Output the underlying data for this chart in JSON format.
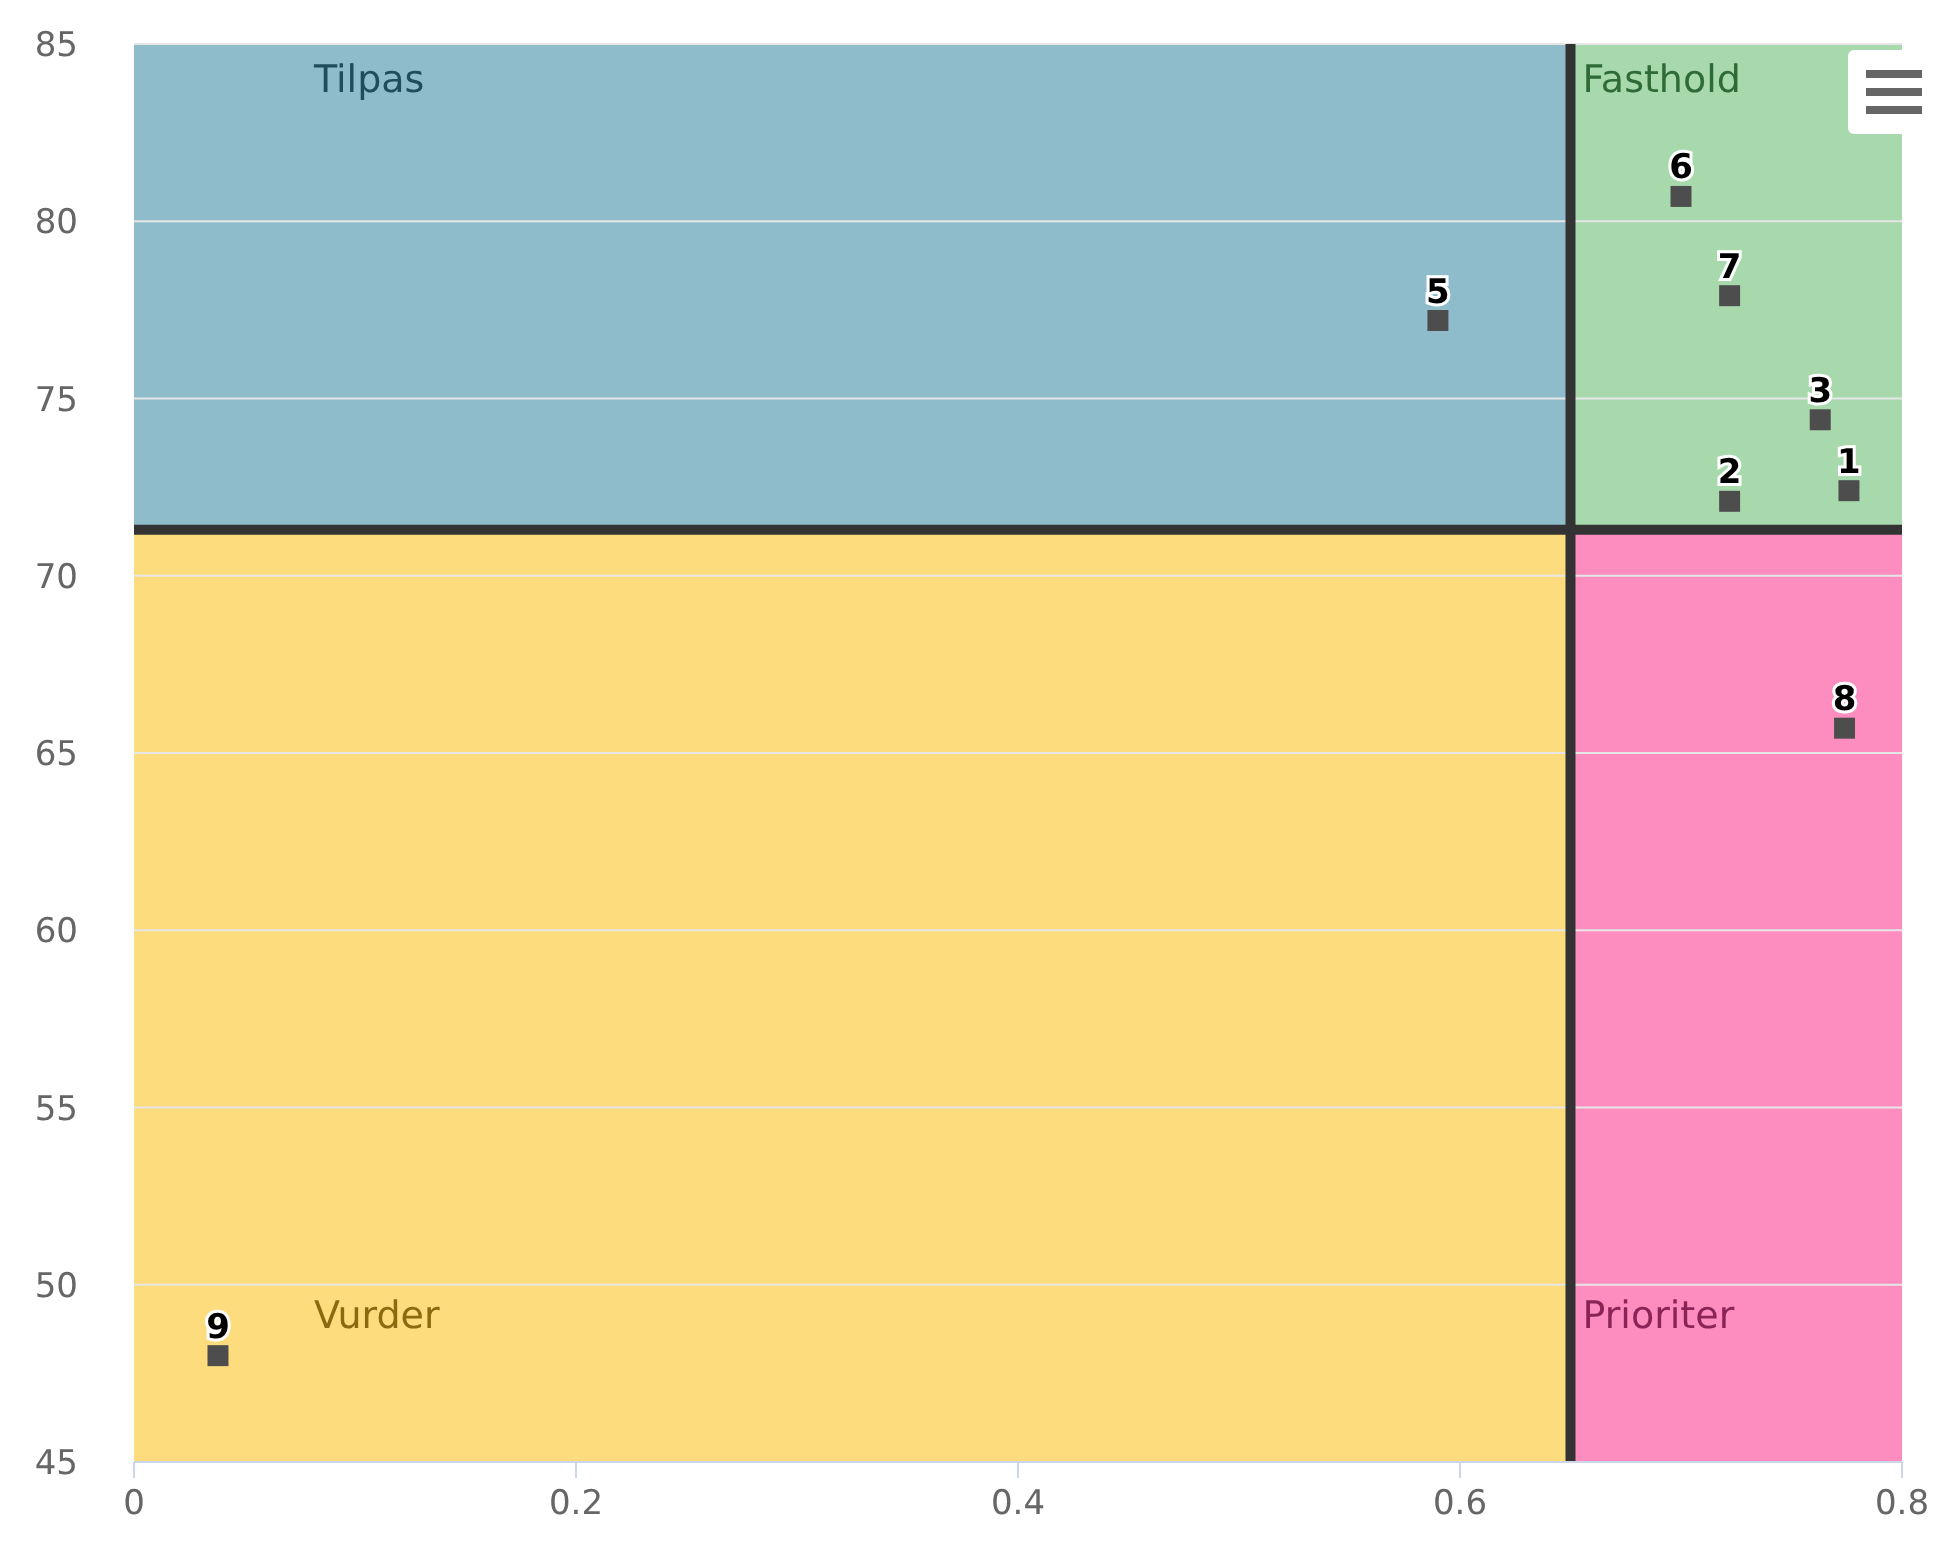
{
  "chart_data": {
    "type": "scatter",
    "series": [
      {
        "color": "#4d4d4d",
        "x": [
          0.776,
          0.722,
          0.763,
          0.59,
          0.7,
          0.722,
          0.774,
          0.038
        ],
        "values": [
          72.4,
          72.1,
          74.4,
          77.2,
          80.7,
          77.9,
          65.7,
          48.0
        ]
      }
    ],
    "marker": "square",
    "xlim": [
      0,
      0.8
    ],
    "xticks": [
      0,
      0.2,
      0.4,
      0.6,
      0.8
    ],
    "ylim": [
      45,
      85
    ],
    "yticks": [
      45,
      50,
      55,
      60,
      65,
      70,
      75,
      80,
      85
    ],
    "grid": "y",
    "ref_lines": [
      {
        "axis": "x",
        "value": 0.65,
        "color": "#333333"
      },
      {
        "axis": "y",
        "value": 71.3,
        "color": "#333333"
      }
    ],
    "bands": [
      {
        "axis": "x",
        "from": 0,
        "to": 0.65,
        "label": "Tilpas",
        "color": "#8ebccb"
      },
      {
        "axis": "x",
        "from": 0.65,
        "to": 0.8,
        "label": "Fasthold",
        "color": "#a8d9ad"
      },
      {
        "axis": "x",
        "from": 0,
        "to": 0.65,
        "label": "Vurder",
        "color": "#fddc7e"
      },
      {
        "axis": "x",
        "from": 0.65,
        "to": 0.8,
        "label": "Prioriter",
        "color": "#fd8dbf"
      }
    ],
    "annotations": [
      {
        "text": "1",
        "x": 0.776,
        "y": 72.4
      },
      {
        "text": "2",
        "x": 0.722,
        "y": 72.1
      },
      {
        "text": "3",
        "x": 0.763,
        "y": 74.4
      },
      {
        "text": "5",
        "x": 0.59,
        "y": 77.2
      },
      {
        "text": "6",
        "x": 0.7,
        "y": 80.7
      },
      {
        "text": "7",
        "x": 0.722,
        "y": 77.9
      },
      {
        "text": "8",
        "x": 0.774,
        "y": 65.7
      },
      {
        "text": "9",
        "x": 0.038,
        "y": 48.0
      }
    ]
  }
}
